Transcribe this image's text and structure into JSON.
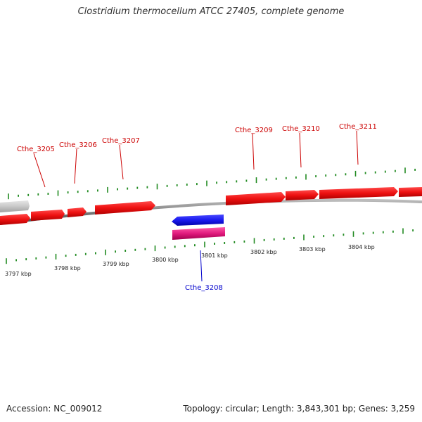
{
  "title": "Clostridium thermocellum ATCC 27405, complete genome",
  "footer": {
    "accession": "Accession: NC_009012",
    "summary": "Topology: circular; Length: 3,843,301 bp; Genes: 3,259"
  },
  "colors": {
    "forward_gene": "#ee1111",
    "reverse_gene": "#1a1aee",
    "pink_gene": "#e0197d",
    "grey_gene": "#c8c8c8",
    "backbone": "#888888",
    "ticks": "#228b22",
    "forward_label": "#cc0000",
    "reverse_label": "#0000cc"
  },
  "scale": {
    "unit": "kbp",
    "labels": [
      "3797 kbp",
      "3798 kbp",
      "3799 kbp",
      "3800 kbp",
      "3801 kbp",
      "3802 kbp",
      "3803 kbp",
      "3804 kbp"
    ]
  },
  "genes": [
    {
      "id": "grey",
      "label": "",
      "strand": "+",
      "color": "grey_gene"
    },
    {
      "id": "g1",
      "label": "",
      "strand": "+",
      "color": "forward_gene"
    },
    {
      "id": "Cthe_3205",
      "label": "Cthe_3205",
      "strand": "+",
      "color": "forward_gene"
    },
    {
      "id": "Cthe_3206",
      "label": "Cthe_3206",
      "strand": "+",
      "color": "forward_gene"
    },
    {
      "id": "Cthe_3207",
      "label": "Cthe_3207",
      "strand": "+",
      "color": "forward_gene"
    },
    {
      "id": "Cthe_3208",
      "label": "Cthe_3208",
      "strand": "-",
      "color": "reverse_gene"
    },
    {
      "id": "pink",
      "label": "",
      "strand": "-",
      "color": "pink_gene"
    },
    {
      "id": "Cthe_3209",
      "label": "Cthe_3209",
      "strand": "+",
      "color": "forward_gene"
    },
    {
      "id": "Cthe_3210",
      "label": "Cthe_3210",
      "strand": "+",
      "color": "forward_gene"
    },
    {
      "id": "Cthe_3211",
      "label": "Cthe_3211",
      "strand": "+",
      "color": "forward_gene"
    },
    {
      "id": "g_end",
      "label": "",
      "strand": "+",
      "color": "forward_gene"
    }
  ]
}
